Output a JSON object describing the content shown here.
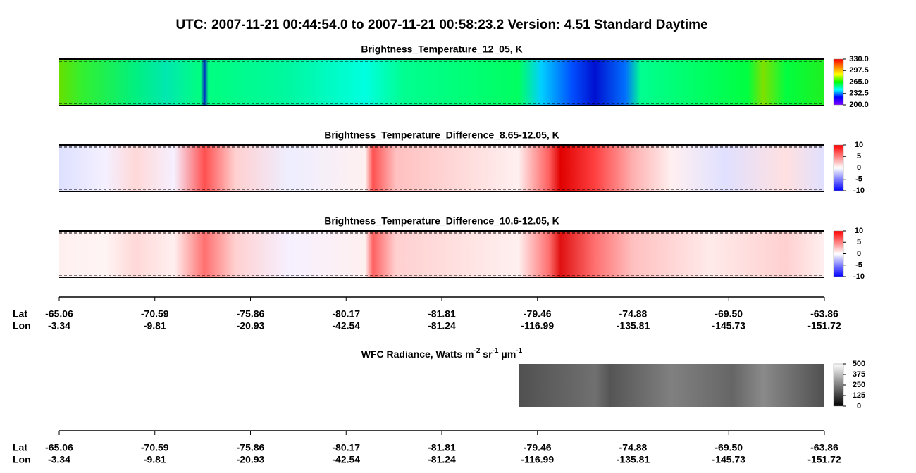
{
  "title": "UTC:  2007-11-21   00:44:54.0  to  2007-11-21   00:58:23.2    Version: 4.51  Standard Daytime",
  "chart_data": [
    {
      "type": "heatmap",
      "title": "Brightness_Temperature_12_05, K",
      "colorbar": {
        "colors": [
          "#8000ff",
          "#0000ff",
          "#00ffff",
          "#00ff00",
          "#ffff00",
          "#ff8000",
          "#ff0000"
        ],
        "lim": [
          200,
          330
        ],
        "ticks": [
          {
            "value": 330,
            "label": "330.0"
          },
          {
            "value": 297.5,
            "label": "297.5"
          },
          {
            "value": 265,
            "label": "265.0"
          },
          {
            "value": 232.5,
            "label": "232.5"
          },
          {
            "value": 200,
            "label": "200.0"
          }
        ]
      }
    },
    {
      "type": "heatmap",
      "title": "Brightness_Temperature_Difference_8.65-12.05, K",
      "colorbar": {
        "colors": [
          "#0000ff",
          "#ffffff",
          "#ff0000"
        ],
        "lim": [
          -10,
          10
        ],
        "ticks": [
          10,
          5,
          0,
          -5,
          -10
        ]
      }
    },
    {
      "type": "heatmap",
      "title": "Brightness_Temperature_Difference_10.6-12.05, K",
      "colorbar": {
        "colors": [
          "#0000ff",
          "#ffffff",
          "#ff0000"
        ],
        "lim": [
          -10,
          10
        ],
        "ticks": [
          10,
          5,
          0,
          -5,
          -10
        ]
      }
    },
    {
      "type": "heatmap",
      "title_parts": [
        "WFC Radiance, Watts m",
        "-2",
        " sr",
        "-1",
        " μm",
        "-1"
      ],
      "colorbar": {
        "colors": [
          "#000000",
          "#ffffff"
        ],
        "lim": [
          0,
          500
        ],
        "ticks": [
          500,
          375,
          250,
          125,
          0
        ]
      }
    }
  ],
  "axes": {
    "lat_label": "Lat",
    "lon_label": "Lon",
    "lat": [
      -65.06,
      -70.59,
      -75.86,
      -80.17,
      -81.81,
      -79.46,
      -74.88,
      {
        "value": -69.5,
        "label": "-69.50"
      },
      -63.86
    ],
    "lon": [
      -3.34,
      -9.81,
      -20.93,
      -42.54,
      -81.24,
      -116.99,
      -135.81,
      -145.73,
      -151.72
    ]
  }
}
